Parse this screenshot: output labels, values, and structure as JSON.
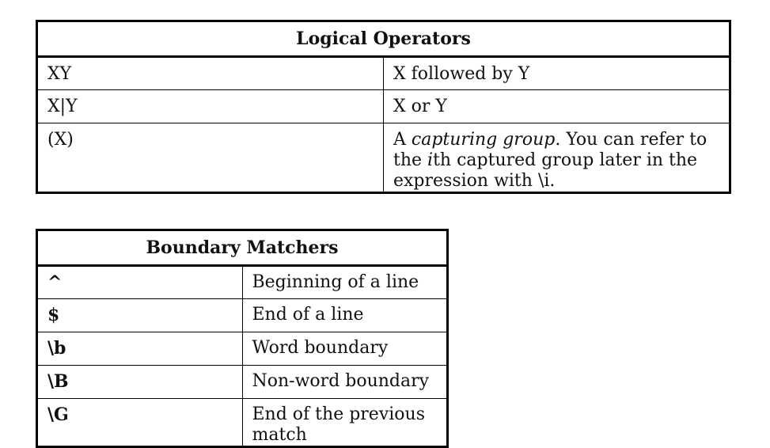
{
  "logical_operators": {
    "title": "Logical Operators",
    "rows": [
      {
        "construct": "XY",
        "description": "X followed by Y"
      },
      {
        "construct": "X|Y",
        "description": "X or Y"
      },
      {
        "construct": "(X)",
        "description_parts": {
          "pre": "A ",
          "em1": "capturing group",
          "mid": ". You can refer to the ",
          "em2": "i",
          "post": "th captured group later in the expression with \\i."
        }
      }
    ]
  },
  "boundary_matchers": {
    "title": "Boundary Matchers",
    "rows": [
      {
        "construct": "^",
        "description": "Beginning of a line"
      },
      {
        "construct": "$",
        "description": "End of a line"
      },
      {
        "construct": "\\b",
        "description": "Word boundary"
      },
      {
        "construct": "\\B",
        "description": "Non-word boundary"
      },
      {
        "construct": "\\G",
        "description": "End of the previous match"
      }
    ]
  }
}
